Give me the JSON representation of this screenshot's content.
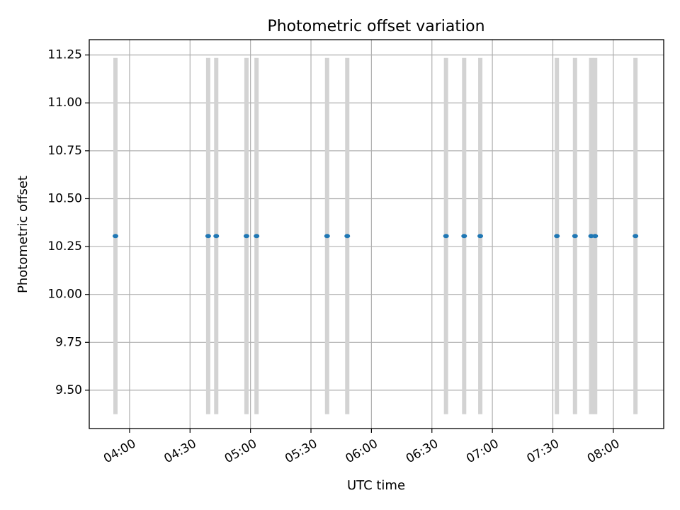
{
  "chart_data": {
    "type": "scatter",
    "title": "Photometric offset variation",
    "xlabel": "UTC time",
    "ylabel": "Photometric offset",
    "xlim": [
      "03:40",
      "08:25"
    ],
    "ylim": [
      9.3,
      11.33
    ],
    "xticks": [
      "04:00",
      "04:30",
      "05:00",
      "05:30",
      "06:00",
      "06:30",
      "07:00",
      "07:30",
      "08:00"
    ],
    "yticks": [
      9.5,
      9.75,
      10.0,
      10.25,
      10.5,
      10.75,
      11.0,
      11.25
    ],
    "ytick_labels": [
      "9.50",
      "9.75",
      "10.00",
      "10.25",
      "10.50",
      "10.75",
      "11.00",
      "11.25"
    ],
    "grid": true,
    "colors": {
      "points": "#1f77b4",
      "error_bars": "#d3d3d3",
      "grid": "#b0b0b0"
    },
    "series": [
      {
        "x": [
          "03:53",
          "04:39",
          "04:43",
          "04:58",
          "05:03",
          "05:38",
          "05:48",
          "06:37",
          "06:46",
          "06:54",
          "07:32",
          "07:41",
          "07:49",
          "07:51",
          "08:11"
        ],
        "y": [
          10.305,
          10.305,
          10.305,
          10.305,
          10.305,
          10.305,
          10.305,
          10.305,
          10.305,
          10.305,
          10.305,
          10.305,
          10.305,
          10.305,
          10.305
        ],
        "yerr_low": [
          9.375,
          9.375,
          9.375,
          9.375,
          9.375,
          9.375,
          9.375,
          9.375,
          9.375,
          9.375,
          9.375,
          9.375,
          9.375,
          9.375,
          9.375
        ],
        "yerr_high": [
          11.235,
          11.235,
          11.235,
          11.235,
          11.235,
          11.235,
          11.235,
          11.235,
          11.235,
          11.235,
          11.235,
          11.235,
          11.235,
          11.235,
          11.235
        ]
      }
    ]
  }
}
